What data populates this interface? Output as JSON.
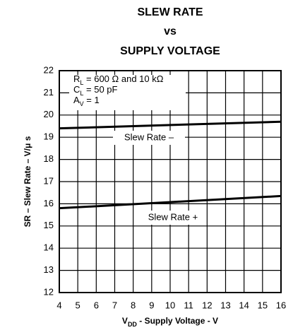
{
  "chart_data": {
    "type": "line",
    "title": [
      "SLEW RATE",
      "vs",
      "SUPPLY VOLTAGE"
    ],
    "xlabel": {
      "main": "V",
      "sub": "DD",
      "rest": " - Supply Voltage - V"
    },
    "ylabel": "SR – Slew Rate – V/μ s",
    "annotations": [
      {
        "main": "R",
        "sub": "L",
        "rest": " = 600 Ω and 10 kΩ"
      },
      {
        "main": "C",
        "sub": "L",
        "rest": " = 50 pF"
      },
      {
        "main": "A",
        "sub": "V",
        "rest": " = 1"
      }
    ],
    "x": [
      4,
      16
    ],
    "series": [
      {
        "name": "Slew Rate –",
        "color": "#000000",
        "values": [
          19.4,
          19.7
        ]
      },
      {
        "name": "Slew Rate +",
        "color": "#000000",
        "values": [
          15.8,
          16.35
        ]
      }
    ],
    "xlim": [
      4,
      16
    ],
    "ylim": [
      12,
      22
    ],
    "xticks": [
      4,
      5,
      6,
      7,
      8,
      9,
      10,
      11,
      12,
      13,
      14,
      15,
      16
    ],
    "yticks": [
      12,
      13,
      14,
      15,
      16,
      17,
      18,
      19,
      20,
      21,
      22
    ],
    "grid": true
  }
}
